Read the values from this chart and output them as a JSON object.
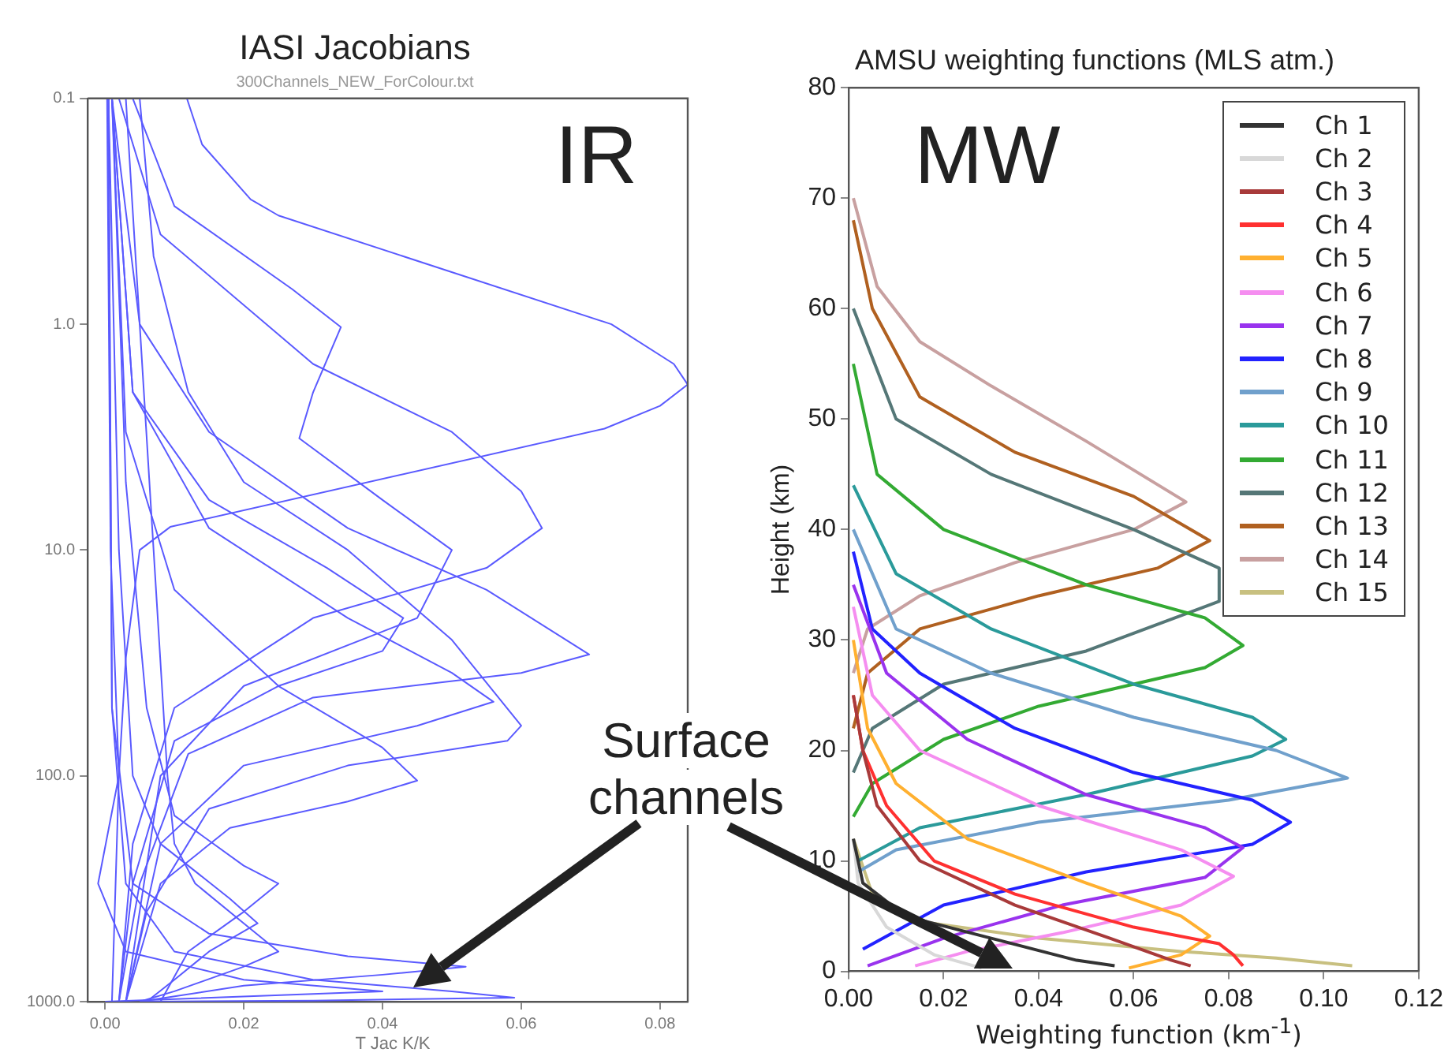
{
  "chart_data": [
    {
      "type": "line",
      "title": "IASI Jacobians",
      "subtitle": "300Channels_NEW_ForColour.txt",
      "xlabel": "T Jac K/K",
      "log": "y",
      "xlim": [
        -0.0025,
        0.084
      ],
      "ylim": [
        1000,
        0.1
      ],
      "xticks": [
        {
          "value": 0,
          "label": "0.00"
        },
        {
          "value": 0.02,
          "label": "0.02"
        },
        {
          "value": 0.04,
          "label": "0.04"
        },
        {
          "value": 0.06,
          "label": "0.06"
        },
        {
          "value": 0.08,
          "label": "0.08"
        }
      ],
      "yticks": [
        {
          "value": 0.1,
          "label": "0.1"
        },
        {
          "value": 1,
          "label": "1.0"
        },
        {
          "value": 10,
          "label": "10.0"
        },
        {
          "value": 100,
          "label": "100.0"
        },
        {
          "value": 1000,
          "label": "1000.0"
        }
      ],
      "grid": false,
      "marker": "none",
      "line_style": "solid",
      "annotations": [
        "IR",
        "Surface channels"
      ],
      "series": [
        {
          "color": "#5a5aff",
          "x": [
            0.0118,
            0.014,
            0.021,
            0.025,
            0.073,
            0.082,
            0.084,
            0.08,
            0.072,
            0.0094,
            0.005,
            0.003,
            0.002,
            0.001
          ],
          "values": [
            0.1,
            0.16,
            0.28,
            0.33,
            1,
            1.5,
            1.85,
            2.3,
            2.9,
            7.9,
            10,
            30,
            100,
            1000
          ]
        },
        {
          "color": "#5a5aff",
          "x": [
            0.004,
            0.01,
            0.027,
            0.034,
            0.03,
            0.028,
            0.04,
            0.05,
            0.045,
            0.02,
            0.008,
            0.003
          ],
          "values": [
            0.1,
            0.3,
            0.7,
            1.03,
            2,
            3.2,
            6,
            10,
            20,
            40,
            100,
            1000
          ]
        },
        {
          "color": "#5a5aff",
          "x": [
            0.002,
            0.008,
            0.03,
            0.05,
            0.06,
            0.063,
            0.055,
            0.03,
            0.01,
            0.004,
            0.002
          ],
          "values": [
            0.1,
            0.4,
            1.5,
            3,
            5.5,
            8,
            12,
            20,
            50,
            200,
            1000
          ]
        },
        {
          "color": "#5a5aff",
          "x": [
            0.001,
            0.005,
            0.015,
            0.035,
            0.055,
            0.0698,
            0.06,
            0.03,
            0.012,
            0.005,
            0.002
          ],
          "values": [
            0.1,
            1,
            3,
            8,
            15,
            29,
            35,
            45,
            80,
            300,
            1000
          ]
        },
        {
          "color": "#5a5aff",
          "x": [
            0.001,
            0.004,
            0.015,
            0.035,
            0.05,
            0.056,
            0.045,
            0.02,
            0.008,
            0.003
          ],
          "values": [
            0.1,
            2,
            8,
            20,
            35,
            47,
            60,
            90,
            200,
            1000
          ]
        },
        {
          "color": "#5a5aff",
          "x": [
            0.001,
            0.003,
            0.01,
            0.025,
            0.04,
            0.045,
            0.035,
            0.018,
            0.008,
            0.003
          ],
          "values": [
            0.1,
            3,
            15,
            40,
            75,
            105,
            130,
            170,
            300,
            1000
          ]
        },
        {
          "color": "#5a5aff",
          "x": [
            0.001,
            0.004,
            0.015,
            0.032,
            0.043,
            0.04,
            0.025,
            0.01,
            0.004,
            0.002
          ],
          "values": [
            0.1,
            2,
            6,
            12,
            20,
            28,
            40,
            70,
            300,
            1000
          ]
        },
        {
          "color": "#5a5aff",
          "x": [
            0.001,
            0.003,
            0.006,
            0.01,
            0.02,
            0.025,
            0.02,
            0.012,
            0.008
          ],
          "values": [
            0.1,
            5,
            50,
            150,
            250,
            300,
            400,
            600,
            1000
          ]
        },
        {
          "color": "#5a5aff",
          "x": [
            0.0005,
            0.002,
            0.004,
            0.008,
            0.018,
            0.022,
            0.015,
            0.01,
            0.006
          ],
          "values": [
            0.1,
            10,
            100,
            200,
            350,
            450,
            600,
            800,
            1000
          ]
        },
        {
          "color": "#5a5aff",
          "x": [
            0.0005,
            0.001,
            0.003,
            0.01,
            0.03,
            0.05,
            0.059,
            0.03,
            0.005
          ],
          "values": [
            0.1,
            50,
            300,
            600,
            800,
            900,
            960,
            990,
            1000
          ]
        },
        {
          "color": "#5a5aff",
          "x": [
            0.0005,
            0.001,
            0.004,
            0.015,
            0.035,
            0.052,
            0.04,
            0.02,
            0.005
          ],
          "values": [
            0.1,
            50,
            300,
            500,
            630,
            700,
            760,
            850,
            1000
          ]
        },
        {
          "color": "#5a5aff",
          "x": [
            0.0003,
            0.0008,
            0.002,
            -0.001,
            0.003,
            0.02,
            0.04,
            0
          ],
          "values": [
            0.1,
            10,
            100,
            300,
            600,
            800,
            900,
            1000
          ]
        },
        {
          "color": "#5a5aff",
          "x": [
            0.003,
            0.005,
            0.007,
            0.009,
            0.01,
            0.013,
            0.02,
            0.025,
            0.02,
            0.01,
            0.005
          ],
          "values": [
            0.1,
            1,
            10,
            100,
            200,
            300,
            450,
            600,
            700,
            900,
            1000
          ]
        },
        {
          "color": "#5a5aff",
          "x": [
            0.005,
            0.007,
            0.012,
            0.02,
            0.035,
            0.05,
            0.06,
            0.058,
            0.035,
            0.015,
            0.006,
            0.003
          ],
          "values": [
            0.1,
            0.5,
            2,
            5,
            10,
            25,
            60,
            70,
            90,
            140,
            400,
            1000
          ]
        }
      ]
    },
    {
      "type": "line",
      "title": "AMSU weighting functions (MLS atm.)",
      "xlabel": "Weighting function (km$^{-1}$)",
      "ylabel": "Height (km)",
      "xlim": [
        0,
        0.12
      ],
      "ylim": [
        0,
        80
      ],
      "xticks": [
        {
          "value": 0,
          "label": "0.00"
        },
        {
          "value": 0.02,
          "label": "0.02"
        },
        {
          "value": 0.04,
          "label": "0.04"
        },
        {
          "value": 0.06,
          "label": "0.06"
        },
        {
          "value": 0.08,
          "label": "0.08"
        },
        {
          "value": 0.1,
          "label": "0.10"
        },
        {
          "value": 0.12,
          "label": "0.12"
        }
      ],
      "yticks": [
        0,
        10,
        20,
        30,
        40,
        50,
        60,
        70,
        80
      ],
      "grid": false,
      "legend": "top right",
      "marker": "none",
      "line_style": "solid",
      "annotations": [
        "MW"
      ],
      "series": [
        {
          "name": "Ch 1",
          "color": "#333333",
          "x": [
            0.001,
            0.003,
            0.012,
            0.03,
            0.048,
            0.056
          ],
          "values": [
            12,
            8,
            5,
            3,
            1,
            0.5
          ]
        },
        {
          "name": "Ch 2",
          "color": "#d8d8d8",
          "x": [
            0.001,
            0.002,
            0.008,
            0.018,
            0.028
          ],
          "values": [
            12,
            8,
            4,
            1.5,
            0.3
          ]
        },
        {
          "name": "Ch 3",
          "color": "#a83a3a",
          "x": [
            0.001,
            0.003,
            0.006,
            0.015,
            0.035,
            0.055,
            0.068,
            0.072
          ],
          "values": [
            25,
            20,
            15,
            10,
            6,
            3,
            1,
            0.5
          ]
        },
        {
          "name": "Ch 4",
          "color": "#ff3030",
          "x": [
            0.001,
            0.003,
            0.008,
            0.018,
            0.035,
            0.06,
            0.078,
            0.081,
            0.083
          ],
          "values": [
            25,
            20,
            15,
            10,
            7,
            4,
            2.5,
            1.5,
            0.5
          ]
        },
        {
          "name": "Ch 5",
          "color": "#ffb030",
          "x": [
            0.001,
            0.004,
            0.01,
            0.025,
            0.05,
            0.07,
            0.076,
            0.07,
            0.059
          ],
          "values": [
            30,
            22,
            17,
            12,
            8,
            5,
            3.2,
            1.5,
            0.3
          ]
        },
        {
          "name": "Ch 6",
          "color": "#f58ef0",
          "x": [
            0.001,
            0.005,
            0.015,
            0.04,
            0.07,
            0.081,
            0.07,
            0.045,
            0.025,
            0.014
          ],
          "values": [
            33,
            25,
            20,
            15,
            11,
            8.6,
            6,
            3.5,
            1.8,
            0.5
          ]
        },
        {
          "name": "Ch 7",
          "color": "#9933ee",
          "x": [
            0.001,
            0.008,
            0.025,
            0.05,
            0.075,
            0.083,
            0.075,
            0.045,
            0.02,
            0.004
          ],
          "values": [
            35,
            27,
            21,
            16,
            13,
            11.2,
            8.5,
            6,
            3,
            0.5
          ]
        },
        {
          "name": "Ch 8",
          "color": "#2222ff",
          "x": [
            0.001,
            0.005,
            0.015,
            0.035,
            0.06,
            0.085,
            0.093,
            0.085,
            0.05,
            0.02,
            0.003
          ],
          "values": [
            38,
            31,
            27,
            22,
            18,
            15.5,
            13.5,
            11.5,
            9,
            6,
            2
          ]
        },
        {
          "name": "Ch 9",
          "color": "#70a0cc",
          "x": [
            0.001,
            0.01,
            0.03,
            0.06,
            0.09,
            0.105,
            0.08,
            0.04,
            0.01,
            0.002
          ],
          "values": [
            40,
            31,
            27,
            23,
            20,
            17.5,
            15.5,
            13.5,
            11,
            9
          ]
        },
        {
          "name": "Ch 10",
          "color": "#2a9a9a",
          "x": [
            0.001,
            0.01,
            0.03,
            0.06,
            0.085,
            0.092,
            0.085,
            0.05,
            0.015,
            0.002
          ],
          "values": [
            44,
            36,
            31,
            26,
            23,
            21,
            19.5,
            16,
            13,
            10
          ]
        },
        {
          "name": "Ch 11",
          "color": "#33aa33",
          "x": [
            0.001,
            0.006,
            0.02,
            0.05,
            0.075,
            0.083,
            0.075,
            0.04,
            0.02,
            0.005,
            0.001
          ],
          "values": [
            55,
            45,
            40,
            35,
            32,
            29.5,
            27.5,
            24,
            21,
            17,
            14
          ]
        },
        {
          "name": "Ch 12",
          "color": "#557777",
          "x": [
            0.001,
            0.01,
            0.03,
            0.06,
            0.078,
            0.078,
            0.05,
            0.02,
            0.005,
            0.001
          ],
          "values": [
            60,
            50,
            45,
            40,
            36.5,
            33.5,
            29,
            26,
            22,
            18
          ]
        },
        {
          "name": "Ch 13",
          "color": "#b06020",
          "x": [
            0.001,
            0.005,
            0.015,
            0.035,
            0.06,
            0.076,
            0.065,
            0.04,
            0.015,
            0.004,
            0.001
          ],
          "values": [
            68,
            60,
            52,
            47,
            43,
            39,
            36.5,
            34,
            31,
            27,
            22
          ]
        },
        {
          "name": "Ch 14",
          "color": "#c8a0a0",
          "x": [
            0.001,
            0.006,
            0.015,
            0.03,
            0.05,
            0.071,
            0.06,
            0.035,
            0.015,
            0.004,
            0.001
          ],
          "values": [
            70,
            62,
            57,
            53,
            48,
            42.5,
            40,
            37,
            34,
            31,
            27
          ]
        },
        {
          "name": "Ch 15",
          "color": "#c8c080",
          "x": [
            0.001,
            0.005,
            0.015,
            0.04,
            0.07,
            0.09,
            0.106
          ],
          "values": [
            12,
            7,
            4.5,
            3,
            1.8,
            1.2,
            0.5
          ]
        }
      ]
    }
  ]
}
